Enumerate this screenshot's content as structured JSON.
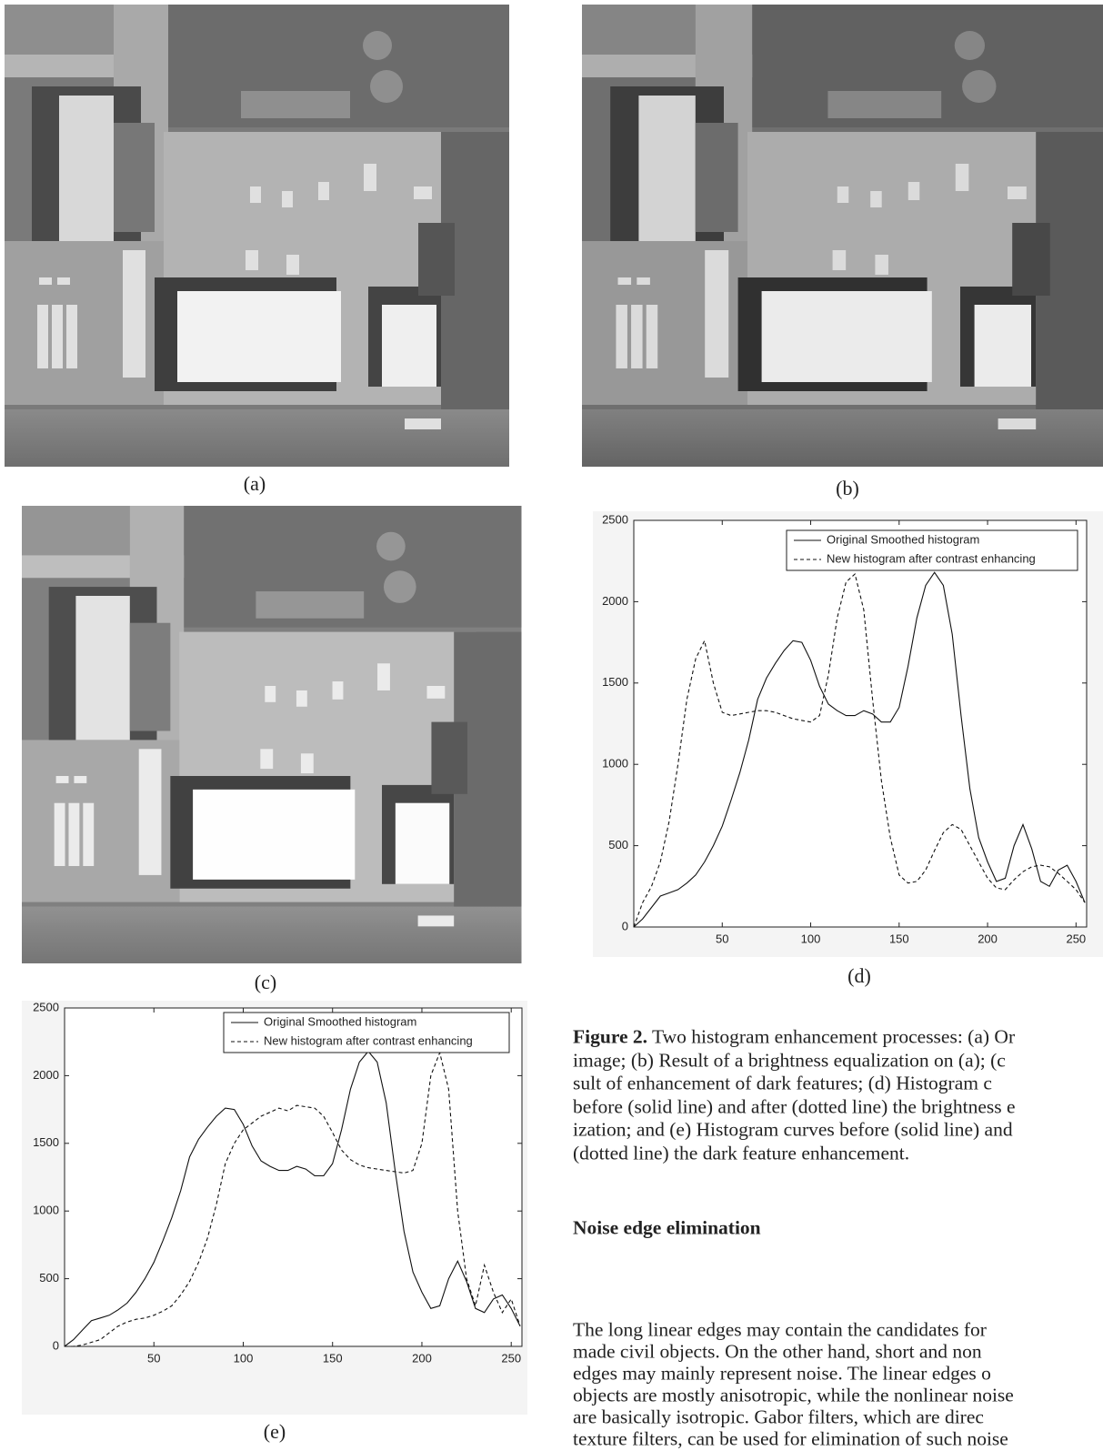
{
  "figure": {
    "panels": [
      "(a)",
      "(b)",
      "(c)",
      "(d)",
      "(e)"
    ],
    "caption": {
      "label": "Figure 2.",
      "lines": [
        "Two histogram enhancement processes: (a) Or",
        "image; (b) Result of a brightness equalization on (a); (c",
        "sult of enhancement of dark features; (d) Histogram c",
        "before (solid line) and after (dotted line) the brightness e",
        "ization; and (e) Histogram curves before (solid line) and",
        "(dotted line) the dark feature enhancement."
      ]
    }
  },
  "section": {
    "heading": "Noise edge elimination",
    "lines": [
      "The long linear edges may contain the candidates for",
      "made civil objects. On the other hand, short and non",
      "edges may mainly represent noise. The linear edges o",
      "objects are mostly anisotropic, while the nonlinear noise",
      "are basically isotropic. Gabor filters, which are direc",
      "texture filters, can be used for elimination of such noise"
    ]
  },
  "chart_data": [
    {
      "type": "line",
      "x": [
        0,
        5,
        10,
        15,
        20,
        25,
        30,
        35,
        40,
        45,
        50,
        55,
        60,
        65,
        70,
        75,
        80,
        85,
        90,
        95,
        100,
        105,
        110,
        115,
        120,
        125,
        130,
        135,
        140,
        145,
        150,
        155,
        160,
        165,
        170,
        175,
        180,
        185,
        190,
        195,
        200,
        205,
        210,
        215,
        220,
        225,
        230,
        235,
        240,
        245,
        250,
        255
      ],
      "series": [
        {
          "name": "Original Smoothed histogram",
          "color": "#111111",
          "linestyle": "solid",
          "values": [
            0,
            50,
            120,
            190,
            210,
            230,
            270,
            320,
            400,
            500,
            620,
            780,
            950,
            1150,
            1400,
            1530,
            1620,
            1700,
            1760,
            1750,
            1640,
            1480,
            1370,
            1330,
            1300,
            1300,
            1330,
            1310,
            1260,
            1260,
            1350,
            1600,
            1900,
            2100,
            2180,
            2100,
            1800,
            1300,
            850,
            550,
            400,
            280,
            300,
            500,
            630,
            480,
            280,
            250,
            350,
            380,
            280,
            150
          ]
        },
        {
          "name": "New histogram after contrast enhancing",
          "color": "#111111",
          "linestyle": "dashed",
          "values": [
            0,
            150,
            250,
            400,
            650,
            1000,
            1400,
            1650,
            1760,
            1500,
            1320,
            1300,
            1310,
            1320,
            1330,
            1330,
            1320,
            1300,
            1280,
            1270,
            1260,
            1300,
            1550,
            1900,
            2120,
            2170,
            1950,
            1400,
            900,
            550,
            320,
            270,
            280,
            350,
            470,
            580,
            630,
            600,
            500,
            400,
            300,
            240,
            230,
            290,
            340,
            370,
            380,
            370,
            330,
            280,
            230,
            150
          ]
        }
      ],
      "xlim": [
        0,
        256
      ],
      "ylim": [
        0,
        2500
      ],
      "xticks": [
        50,
        100,
        150,
        200,
        250
      ],
      "yticks": [
        0,
        500,
        1000,
        1500,
        2000,
        2500
      ],
      "legend": "upper right"
    },
    {
      "type": "line",
      "x": [
        0,
        5,
        10,
        15,
        20,
        25,
        30,
        35,
        40,
        45,
        50,
        55,
        60,
        65,
        70,
        75,
        80,
        85,
        90,
        95,
        100,
        105,
        110,
        115,
        120,
        125,
        130,
        135,
        140,
        145,
        150,
        155,
        160,
        165,
        170,
        175,
        180,
        185,
        190,
        195,
        200,
        205,
        210,
        215,
        220,
        225,
        230,
        235,
        240,
        245,
        250,
        255
      ],
      "series": [
        {
          "name": "Original Smoothed histogram",
          "color": "#111111",
          "linestyle": "solid",
          "values": [
            0,
            50,
            120,
            190,
            210,
            230,
            270,
            320,
            400,
            500,
            620,
            780,
            950,
            1150,
            1400,
            1530,
            1620,
            1700,
            1760,
            1750,
            1640,
            1480,
            1370,
            1330,
            1300,
            1300,
            1330,
            1310,
            1260,
            1260,
            1350,
            1600,
            1900,
            2100,
            2180,
            2100,
            1800,
            1300,
            850,
            550,
            400,
            280,
            300,
            500,
            630,
            480,
            280,
            250,
            350,
            380,
            280,
            150
          ]
        },
        {
          "name": "New histogram after contrast enhancing",
          "color": "#111111",
          "linestyle": "dashed",
          "values": [
            0,
            0,
            10,
            30,
            50,
            100,
            150,
            180,
            200,
            210,
            230,
            260,
            300,
            380,
            480,
            620,
            800,
            1050,
            1350,
            1500,
            1600,
            1650,
            1700,
            1730,
            1760,
            1740,
            1780,
            1770,
            1760,
            1700,
            1580,
            1450,
            1380,
            1340,
            1320,
            1310,
            1300,
            1290,
            1280,
            1300,
            1500,
            2000,
            2170,
            1900,
            1000,
            500,
            300,
            600,
            400,
            250,
            350,
            150
          ]
        }
      ],
      "xlim": [
        0,
        256
      ],
      "ylim": [
        0,
        2500
      ],
      "xticks": [
        50,
        100,
        150,
        200,
        250
      ],
      "yticks": [
        0,
        500,
        1000,
        1500,
        2000,
        2500
      ],
      "legend": "upper right"
    }
  ]
}
